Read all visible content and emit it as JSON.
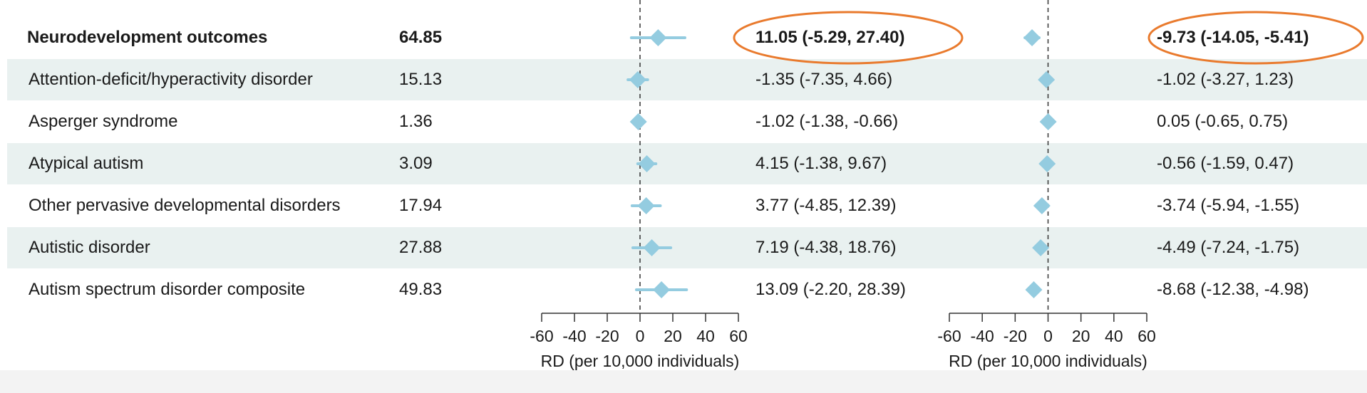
{
  "chart_data": {
    "type": "forest",
    "rows": [
      {
        "label": "Neurodevelopment outcomes",
        "value": "64.85",
        "bold": true,
        "ci1_text": "11.05 (-5.29, 27.40)",
        "rd1": 11.05,
        "rd1_low": -5.29,
        "rd1_high": 27.4,
        "ci2_text": "-9.73 (-14.05, -5.41)",
        "rd2": -9.73,
        "rd2_low": -14.05,
        "rd2_high": -5.41
      },
      {
        "label": "Attention-deficit/hyperactivity disorder",
        "value": "15.13",
        "bold": false,
        "ci1_text": "-1.35 (-7.35, 4.66)",
        "rd1": -1.35,
        "rd1_low": -7.35,
        "rd1_high": 4.66,
        "ci2_text": "-1.02 (-3.27, 1.23)",
        "rd2": -1.02,
        "rd2_low": -3.27,
        "rd2_high": 1.23
      },
      {
        "label": "Asperger syndrome",
        "value": "1.36",
        "bold": false,
        "ci1_text": "-1.02 (-1.38, -0.66)",
        "rd1": -1.02,
        "rd1_low": -1.38,
        "rd1_high": -0.66,
        "ci2_text": "0.05 (-0.65, 0.75)",
        "rd2": 0.05,
        "rd2_low": -0.65,
        "rd2_high": 0.75
      },
      {
        "label": "Atypical autism",
        "value": "3.09",
        "bold": false,
        "ci1_text": "4.15 (-1.38, 9.67)",
        "rd1": 4.15,
        "rd1_low": -1.38,
        "rd1_high": 9.67,
        "ci2_text": "-0.56 (-1.59, 0.47)",
        "rd2": -0.56,
        "rd2_low": -1.59,
        "rd2_high": 0.47
      },
      {
        "label": "Other pervasive developmental disorders",
        "value": "17.94",
        "bold": false,
        "ci1_text": "3.77 (-4.85, 12.39)",
        "rd1": 3.77,
        "rd1_low": -4.85,
        "rd1_high": 12.39,
        "ci2_text": "-3.74 (-5.94, -1.55)",
        "rd2": -3.74,
        "rd2_low": -5.94,
        "rd2_high": -1.55
      },
      {
        "label": "Autistic disorder",
        "value": "27.88",
        "bold": false,
        "ci1_text": "7.19 (-4.38, 18.76)",
        "rd1": 7.19,
        "rd1_low": -4.38,
        "rd1_high": 18.76,
        "ci2_text": "-4.49 (-7.24, -1.75)",
        "rd2": -4.49,
        "rd2_low": -7.24,
        "rd2_high": -1.75
      },
      {
        "label": "Autism spectrum disorder composite",
        "value": "49.83",
        "bold": false,
        "ci1_text": "13.09 (-2.20, 28.39)",
        "rd1": 13.09,
        "rd1_low": -2.2,
        "rd1_high": 28.39,
        "ci2_text": "-8.68 (-12.38, -4.98)",
        "rd2": -8.68,
        "rd2_low": -12.38,
        "rd2_high": -4.98
      }
    ],
    "axis1": {
      "ticks": [
        -60,
        -40,
        -20,
        0,
        20,
        40,
        60
      ],
      "label": "RD (per 10,000 individuals)",
      "xlim": [
        -60,
        60
      ]
    },
    "axis2": {
      "ticks": [
        -60,
        -40,
        -20,
        0,
        20,
        40,
        60
      ],
      "label": "RD (per 10,000 individuals)",
      "xlim": [
        -60,
        60
      ]
    },
    "highlighted": [
      "11.05 (-5.29, 27.40)",
      "-9.73 (-14.05, -5.41)"
    ],
    "shaded_rows": [
      1,
      3,
      5
    ],
    "colors": {
      "marker": "#94cce0",
      "highlight": "#e97a2d",
      "row_shade": "#e9f1f0",
      "text": "#1a1a1a"
    }
  }
}
